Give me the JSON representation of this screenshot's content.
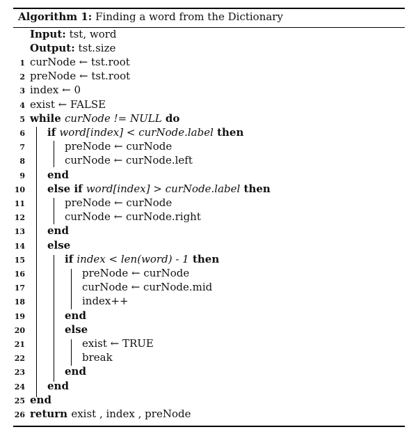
{
  "caption": {
    "label": "Algorithm 1:",
    "title": "Finding a word from the Dictionary"
  },
  "header": {
    "input_label": "Input:",
    "input_value": "tst, word",
    "output_label": "Output:",
    "output_value": "tst.size"
  },
  "lines": [
    {
      "num": "1",
      "indent": 0,
      "parts": [
        {
          "t": "curNode ← tst.root"
        }
      ]
    },
    {
      "num": "2",
      "indent": 0,
      "parts": [
        {
          "t": "preNode ← tst.root"
        }
      ]
    },
    {
      "num": "3",
      "indent": 0,
      "parts": [
        {
          "t": "index ← 0"
        }
      ]
    },
    {
      "num": "4",
      "indent": 0,
      "parts": [
        {
          "t": "exist ← FALSE"
        }
      ]
    },
    {
      "num": "5",
      "indent": 0,
      "parts": [
        {
          "t": "while ",
          "s": "kw"
        },
        {
          "t": "curNode != NULL",
          "s": "it"
        },
        {
          "t": " do",
          "s": "kw"
        }
      ]
    },
    {
      "num": "6",
      "indent": 1,
      "parts": [
        {
          "t": "if ",
          "s": "kw"
        },
        {
          "t": "word[index] < curNode.label",
          "s": "it"
        },
        {
          "t": " then",
          "s": "kw"
        }
      ]
    },
    {
      "num": "7",
      "indent": 2,
      "parts": [
        {
          "t": "preNode ← curNode"
        }
      ]
    },
    {
      "num": "8",
      "indent": 2,
      "parts": [
        {
          "t": "curNode ← curNode.left"
        }
      ]
    },
    {
      "num": "9",
      "indent": 1,
      "parts": [
        {
          "t": "end",
          "s": "kw"
        }
      ]
    },
    {
      "num": "10",
      "indent": 1,
      "parts": [
        {
          "t": "else if ",
          "s": "kw"
        },
        {
          "t": "word[index] > curNode.label",
          "s": "it"
        },
        {
          "t": " then",
          "s": "kw"
        }
      ]
    },
    {
      "num": "11",
      "indent": 2,
      "parts": [
        {
          "t": "preNode ← curNode"
        }
      ]
    },
    {
      "num": "12",
      "indent": 2,
      "parts": [
        {
          "t": "curNode ← curNode.right"
        }
      ]
    },
    {
      "num": "13",
      "indent": 1,
      "parts": [
        {
          "t": "end",
          "s": "kw"
        }
      ]
    },
    {
      "num": "14",
      "indent": 1,
      "parts": [
        {
          "t": "else",
          "s": "kw"
        }
      ]
    },
    {
      "num": "15",
      "indent": 2,
      "parts": [
        {
          "t": "if ",
          "s": "kw"
        },
        {
          "t": "index < len(word) - 1",
          "s": "it"
        },
        {
          "t": " then",
          "s": "kw"
        }
      ]
    },
    {
      "num": "16",
      "indent": 3,
      "parts": [
        {
          "t": "preNode ← curNode"
        }
      ]
    },
    {
      "num": "17",
      "indent": 3,
      "parts": [
        {
          "t": "curNode ← curNode.mid"
        }
      ]
    },
    {
      "num": "18",
      "indent": 3,
      "parts": [
        {
          "t": "index++"
        }
      ]
    },
    {
      "num": "19",
      "indent": 2,
      "parts": [
        {
          "t": "end",
          "s": "kw"
        }
      ]
    },
    {
      "num": "20",
      "indent": 2,
      "parts": [
        {
          "t": "else",
          "s": "kw"
        }
      ]
    },
    {
      "num": "21",
      "indent": 3,
      "parts": [
        {
          "t": "exist ← TRUE"
        }
      ]
    },
    {
      "num": "22",
      "indent": 3,
      "parts": [
        {
          "t": "break"
        }
      ]
    },
    {
      "num": "23",
      "indent": 2,
      "parts": [
        {
          "t": "end",
          "s": "kw"
        }
      ]
    },
    {
      "num": "24",
      "indent": 1,
      "parts": [
        {
          "t": "end",
          "s": "kw"
        }
      ]
    },
    {
      "num": "25",
      "indent": 0,
      "parts": [
        {
          "t": "end",
          "s": "kw"
        }
      ]
    },
    {
      "num": "26",
      "indent": 0,
      "parts": [
        {
          "t": "return ",
          "s": "kw"
        },
        {
          "t": "exist , index , preNode"
        }
      ]
    }
  ]
}
